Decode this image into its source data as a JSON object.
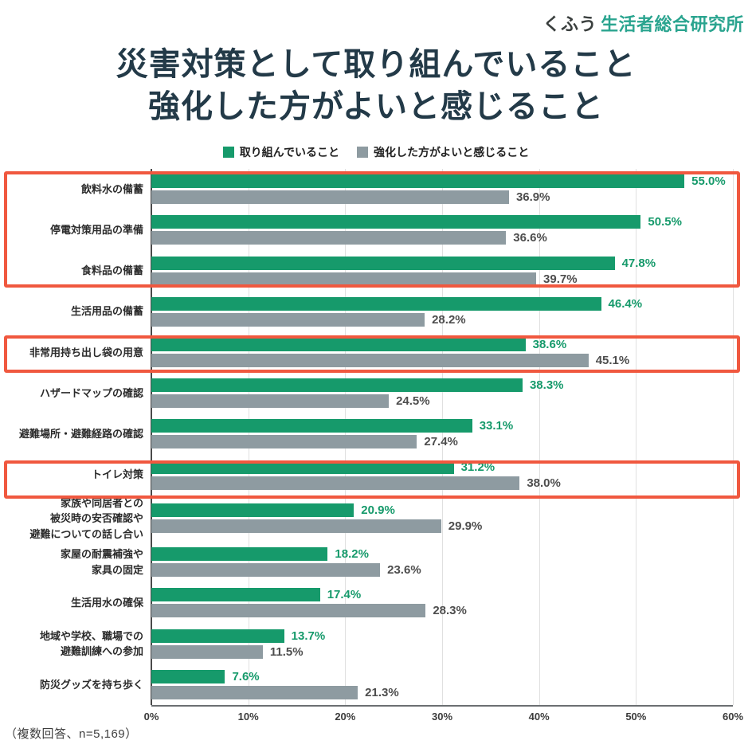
{
  "logo": {
    "prefix": "くふう",
    "name": "生活者総合研究所"
  },
  "title": {
    "line1": "災害対策として取り組んでいること",
    "line2": "強化した方がよいと感じること"
  },
  "legend": {
    "series1": "取り組んでいること",
    "series2": "強化した方がよいと感じること"
  },
  "footer": {
    "note": "（複数回答、n=5,169）"
  },
  "colors": {
    "green": "#169a6b",
    "gray": "#8e9ba1",
    "highlight_red": "#f0583f",
    "title_dark": "#233a48",
    "logo_teal": "#2aa48f"
  },
  "chart_data": {
    "type": "bar",
    "orientation": "horizontal",
    "title": "災害対策として取り組んでいること 強化した方がよいと感じること",
    "note": "（複数回答、n=5,169）",
    "xlim": [
      0,
      60
    ],
    "x_ticks": [
      "0%",
      "10%",
      "20%",
      "30%",
      "40%",
      "50%",
      "60%"
    ],
    "grid": true,
    "legend_position": "top",
    "categories": [
      "飲料水の備蓄",
      "停電対策用品の準備",
      "食料品の備蓄",
      "生活用品の備蓄",
      "非常用持ち出し袋の用意",
      "ハザードマップの確認",
      "避難場所・避難経路の確認",
      "トイレ対策",
      "家族や同居者との\n被災時の安否確認や\n避難についての話し合い",
      "家屋の耐震補強や\n家具の固定",
      "生活用水の確保",
      "地域や学校、職場での\n避難訓練への参加",
      "防災グッズを持ち歩く"
    ],
    "series": [
      {
        "name": "取り組んでいること",
        "color": "#169a6b",
        "values": [
          55.0,
          50.5,
          47.8,
          46.4,
          38.6,
          38.3,
          33.1,
          31.2,
          20.9,
          18.2,
          17.4,
          13.7,
          7.6
        ]
      },
      {
        "name": "強化した方がよいと感じること",
        "color": "#8e9ba1",
        "values": [
          36.9,
          36.6,
          39.7,
          28.2,
          45.1,
          24.5,
          27.4,
          38.0,
          29.9,
          23.6,
          28.3,
          11.5,
          21.3
        ]
      }
    ],
    "highlighted_category_groups": [
      [
        "飲料水の備蓄",
        "停電対策用品の準備",
        "食料品の備蓄"
      ],
      [
        "非常用持ち出し袋の用意"
      ],
      [
        "トイレ対策"
      ]
    ]
  }
}
